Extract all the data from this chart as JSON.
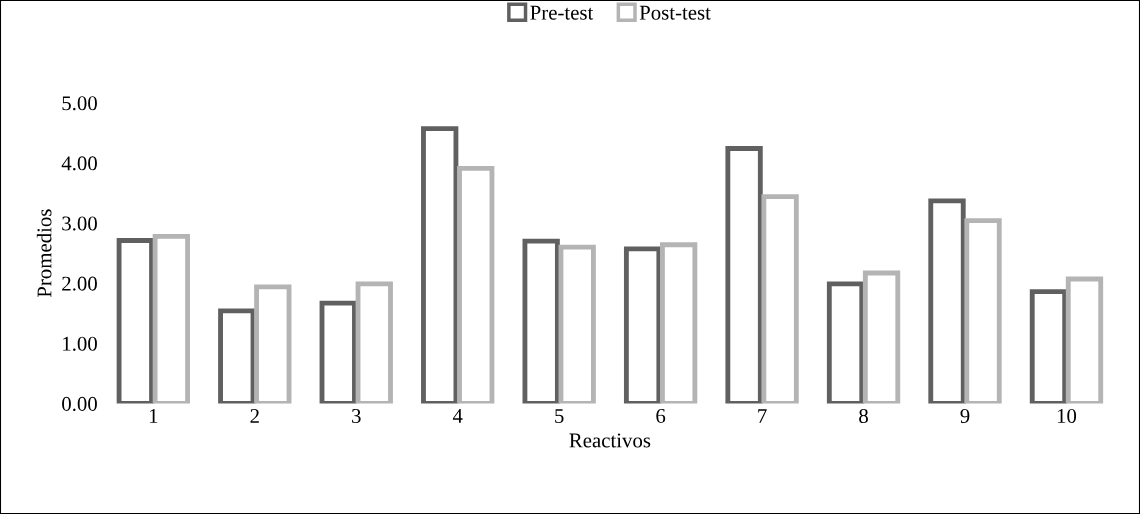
{
  "chart_data": {
    "type": "bar",
    "xlabel": "Reactivos",
    "ylabel": "Promedios",
    "categories": [
      "1",
      "2",
      "3",
      "4",
      "5",
      "6",
      "7",
      "8",
      "9",
      "10"
    ],
    "series": [
      {
        "name": "Pre-test",
        "color": "#606060",
        "values": [
          2.71,
          1.54,
          1.67,
          4.57,
          2.7,
          2.57,
          4.24,
          1.99,
          3.37,
          1.86
        ]
      },
      {
        "name": "Post-test",
        "color": "#b4b4b4",
        "values": [
          2.78,
          1.94,
          1.99,
          3.91,
          2.6,
          2.64,
          3.44,
          2.17,
          3.04,
          2.07
        ]
      }
    ],
    "ylim": [
      0,
      5
    ],
    "yticks": [
      {
        "value": 0,
        "label": "0.00"
      },
      {
        "value": 1,
        "label": "1.00"
      },
      {
        "value": 2,
        "label": "2.00"
      },
      {
        "value": 3,
        "label": "3.00"
      },
      {
        "value": 4,
        "label": "4.00"
      },
      {
        "value": 5,
        "label": "5.00"
      }
    ],
    "legend": "top",
    "grid": false
  }
}
